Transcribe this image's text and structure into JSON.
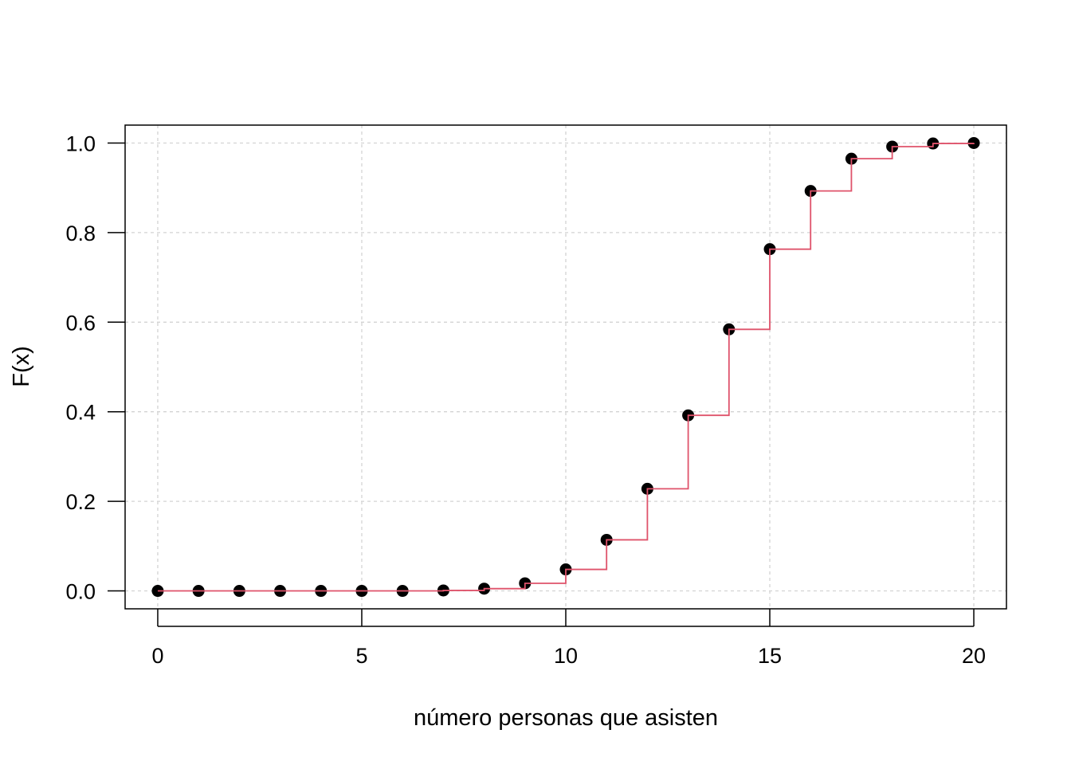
{
  "chart_data": {
    "type": "line",
    "subtype": "step-cdf",
    "title": "",
    "xlabel": "número personas que asisten",
    "ylabel": "F(x)",
    "xlim": [
      -0.8,
      20.8
    ],
    "ylim": [
      -0.04,
      1.04
    ],
    "x_ticks": [
      0,
      5,
      10,
      15,
      20
    ],
    "x_tick_labels": [
      "0",
      "5",
      "10",
      "15",
      "20"
    ],
    "y_ticks": [
      0.0,
      0.2,
      0.4,
      0.6,
      0.8,
      1.0
    ],
    "y_tick_labels": [
      "0.0",
      "0.2",
      "0.4",
      "0.6",
      "0.8",
      "1.0"
    ],
    "grid": true,
    "x": [
      0,
      1,
      2,
      3,
      4,
      5,
      6,
      7,
      8,
      9,
      10,
      11,
      12,
      13,
      14,
      15,
      16,
      17,
      18,
      19,
      20
    ],
    "values": [
      0.0,
      0.0,
      0.0,
      0.0,
      0.0,
      0.0,
      0.0,
      0.001,
      0.005,
      0.017,
      0.048,
      0.114,
      0.228,
      0.392,
      0.584,
      0.763,
      0.893,
      0.965,
      0.992,
      0.999,
      1.0
    ],
    "colors": {
      "points": "#000000",
      "step_line": "#df536b",
      "grid": "#d3d3d3",
      "axis": "#000000"
    }
  }
}
